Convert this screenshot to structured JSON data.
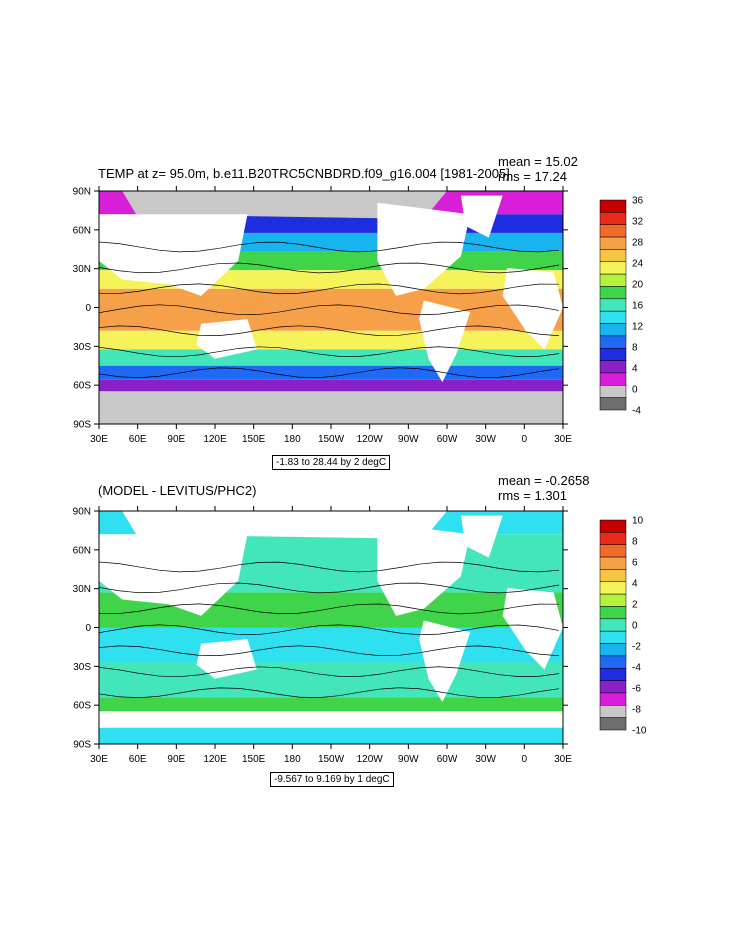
{
  "panels": [
    {
      "title": "TEMP at z=  95.0m, b.e11.B20TRC5CNBDRD.f09_g16.004 [1981-2005]",
      "mean_label": "mean = 15.02",
      "rms_label": "rms = 17.24",
      "range_label": "-1.83 to 28.44 by 2 degC",
      "colorbar_labels": [
        "36",
        "32",
        "28",
        "24",
        "20",
        "16",
        "12",
        "8",
        "4",
        "0",
        "-4"
      ],
      "colorbar_colors": [
        "#c40000",
        "#ea2a1c",
        "#f06a2a",
        "#f7a04a",
        "#f5c645",
        "#f6f25a",
        "#b5f23c",
        "#3fd44a",
        "#43e6bb",
        "#2fe0f0",
        "#18b4f0",
        "#1f6af5",
        "#1f2de0",
        "#8a20c8",
        "#d81ed8",
        "#c8c8c8",
        "#6e6e6e"
      ]
    },
    {
      "title": "(MODEL - LEVITUS/PHC2)",
      "mean_label": "mean = -0.2658",
      "rms_label": "rms = 1.301",
      "range_label": "-9.567 to 9.169 by 1 degC",
      "colorbar_labels": [
        "10",
        "8",
        "6",
        "4",
        "2",
        "0",
        "-2",
        "-4",
        "-6",
        "-8",
        "-10"
      ],
      "colorbar_colors": [
        "#c40000",
        "#ea2a1c",
        "#f06a2a",
        "#f7a04a",
        "#f5c645",
        "#f6f25a",
        "#b5f23c",
        "#3fd44a",
        "#43e6bb",
        "#2fe0f0",
        "#18b4f0",
        "#1f6af5",
        "#1f2de0",
        "#8a20c8",
        "#d81ed8",
        "#c8c8c8",
        "#6e6e6e"
      ]
    }
  ],
  "axes": {
    "lat_labels": [
      "90N",
      "60N",
      "30N",
      "0",
      "30S",
      "60S",
      "90S"
    ],
    "lon_labels": [
      "30E",
      "60E",
      "90E",
      "120E",
      "150E",
      "180",
      "150W",
      "120W",
      "90W",
      "60W",
      "30W",
      "0",
      "30E"
    ]
  },
  "colors": {
    "land": "#ffffff",
    "ice": "#c8c8c8",
    "frame": "#000000"
  }
}
